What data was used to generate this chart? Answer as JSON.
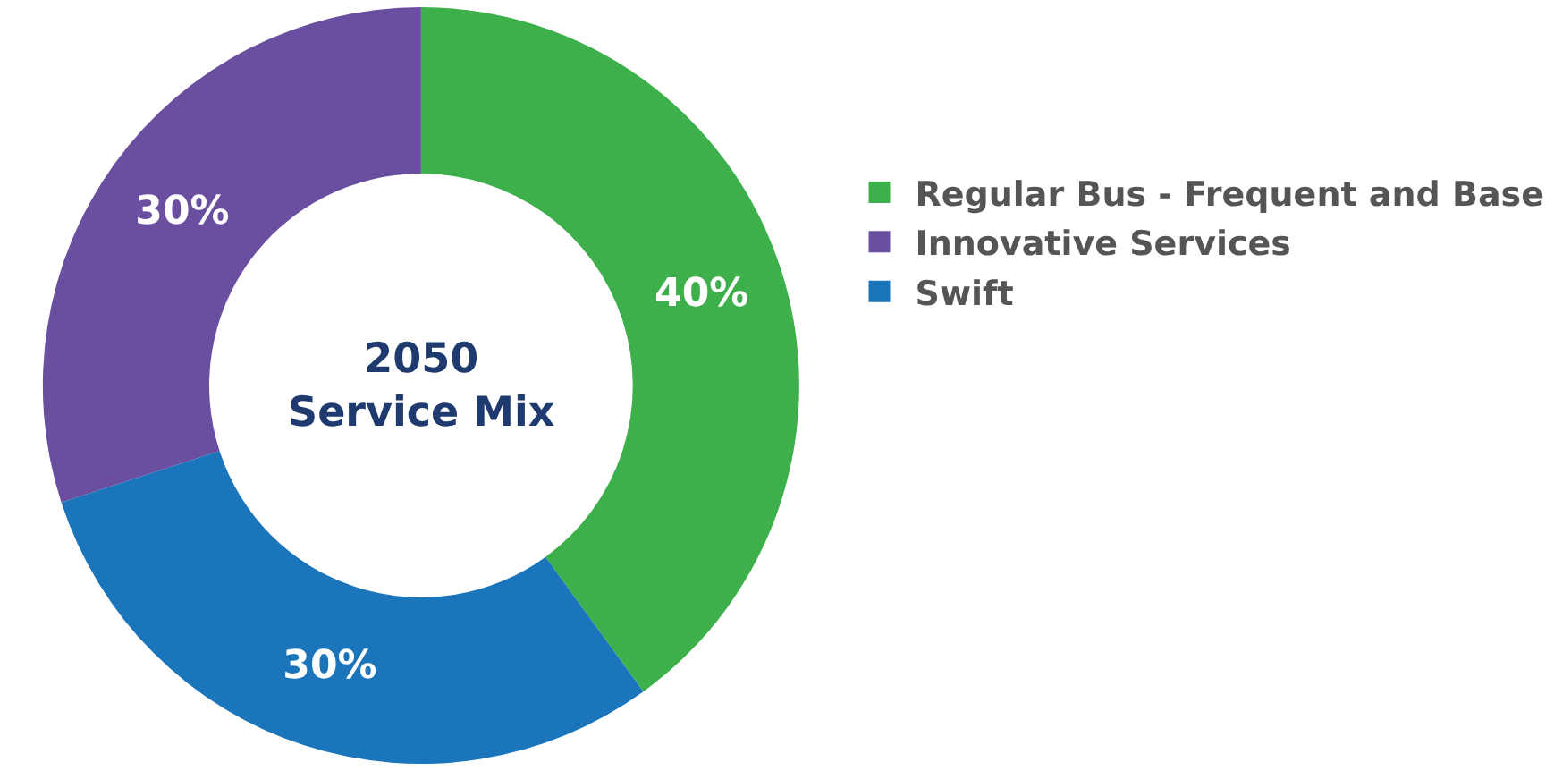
{
  "chart_data": {
    "type": "donut",
    "title": "2050 Service Mix",
    "categories": [
      "Regular Bus - Frequent and Base",
      "Innovative Services",
      "Swift"
    ],
    "values": [
      40,
      30,
      30
    ],
    "colors": [
      "#3db04b",
      "#6a4fa0",
      "#1a75bb"
    ],
    "value_labels": [
      "40%",
      "30%",
      "30%"
    ],
    "legend": "top right"
  }
}
